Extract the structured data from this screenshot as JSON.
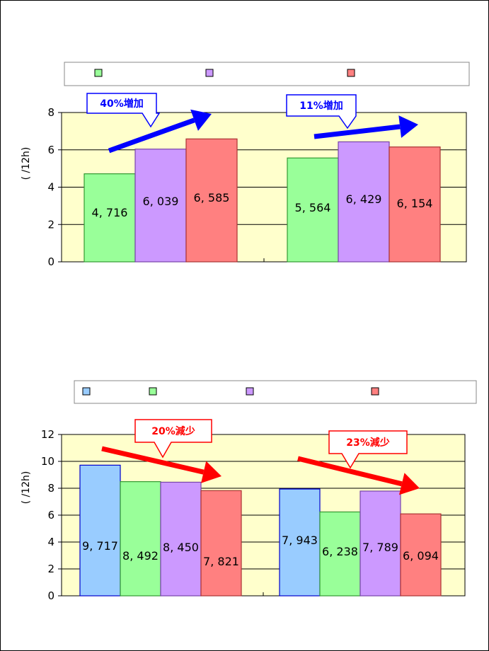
{
  "chart_data": [
    {
      "type": "bar",
      "ylabel": "( /12h)",
      "ylim": [
        0,
        8
      ],
      "yticks": [
        "0",
        "2",
        "4",
        "6",
        "8"
      ],
      "legend_placement": "top",
      "grid": true,
      "background": "#ffffcc",
      "series": [
        {
          "color": "#99ff99",
          "stroke": "#339933",
          "values": [
            4.716,
            5.564
          ],
          "labels": [
            "4, 716",
            "5, 564"
          ]
        },
        {
          "color": "#cc99ff",
          "stroke": "#7744aa",
          "values": [
            6.039,
            6.429
          ],
          "labels": [
            "6, 039",
            "6, 429"
          ]
        },
        {
          "color": "#ff8080",
          "stroke": "#aa3333",
          "values": [
            6.585,
            6.154
          ],
          "labels": [
            "6, 585",
            "6, 154"
          ]
        }
      ],
      "callouts": [
        {
          "text": "40%増加",
          "color": "#0000ff"
        },
        {
          "text": "11%増加",
          "color": "#0000ff"
        }
      ]
    },
    {
      "type": "bar",
      "ylabel": "( /12h)",
      "ylim": [
        0,
        12
      ],
      "yticks": [
        "0",
        "2",
        "4",
        "6",
        "8",
        "10",
        "12"
      ],
      "legend_placement": "top",
      "grid": true,
      "background": "#ffffcc",
      "series": [
        {
          "color": "#99ccff",
          "stroke": "#0000cc",
          "values": [
            9.717,
            7.943
          ],
          "labels": [
            "9, 717",
            "7, 943"
          ]
        },
        {
          "color": "#99ff99",
          "stroke": "#339933",
          "values": [
            8.492,
            6.238
          ],
          "labels": [
            "8, 492",
            "6, 238"
          ]
        },
        {
          "color": "#cc99ff",
          "stroke": "#7744aa",
          "values": [
            8.45,
            7.789
          ],
          "labels": [
            "8, 450",
            "7, 789"
          ]
        },
        {
          "color": "#ff8080",
          "stroke": "#aa3333",
          "values": [
            7.821,
            6.094
          ],
          "labels": [
            "7, 821",
            "6, 094"
          ]
        }
      ],
      "callouts": [
        {
          "text": "20%減少",
          "color": "#ff0000"
        },
        {
          "text": "23%減少",
          "color": "#ff0000"
        }
      ]
    }
  ]
}
